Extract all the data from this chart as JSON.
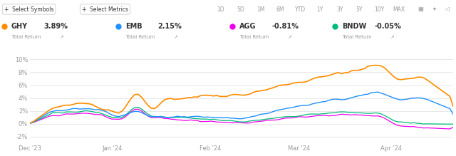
{
  "background_color": "#ffffff",
  "plot_bg_color": "#ffffff",
  "grid_color": "#e8e8e8",
  "header_bg": "#ffffff",
  "border_color": "#dddddd",
  "x_tick_labels": [
    "Dec '23",
    "Jan '24",
    "Feb '24",
    "Mar '24",
    "Apr '24"
  ],
  "y_ticks": [
    -2,
    0,
    2,
    4,
    6,
    8,
    10
  ],
  "y_tick_labels": [
    "-2%",
    "0%",
    "2%",
    "4%",
    "6%",
    "8%",
    "10%"
  ],
  "ylim": [
    -3.0,
    11.8
  ],
  "series": {
    "GHY": {
      "color": "#ff8c00",
      "pct": "3.89%"
    },
    "EMB": {
      "color": "#1e90ff",
      "pct": "2.15%"
    },
    "AGG": {
      "color": "#ee00ee",
      "pct": "-0.81%"
    },
    "BNDW": {
      "color": "#00bb77",
      "pct": "-0.05%"
    }
  },
  "toolbar_buttons": [
    "1D",
    "5D",
    "1M",
    "6M",
    "YTD",
    "1Y",
    "3Y",
    "5Y",
    "10Y",
    "MAX"
  ],
  "text_dark": "#333333",
  "text_mid": "#555555",
  "text_light": "#999999"
}
